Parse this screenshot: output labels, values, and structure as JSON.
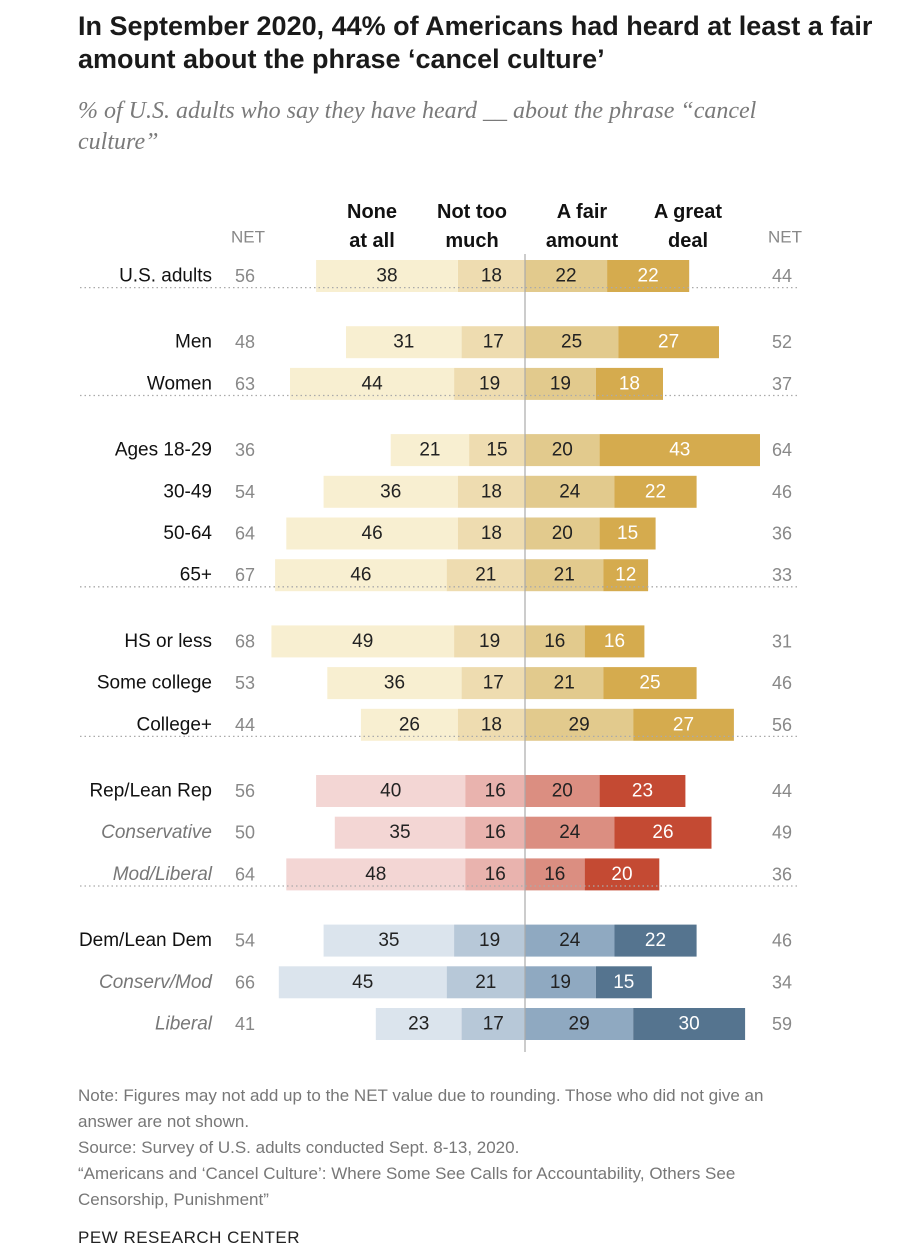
{
  "header": {
    "title": "In September 2020, 44% of Americans had heard at least a fair amount about the phrase ‘cancel culture’",
    "subtitle": "% of U.S. adults who say they have heard __ about the phrase “cancel culture”"
  },
  "footer": {
    "note": "Note: Figures may not add up to the NET value due to rounding. Those who did not give an answer are not shown.",
    "source": "Source: Survey of U.S. adults conducted Sept. 8-13, 2020.",
    "report": "“Americans and ‘Cancel Culture’: Where Some See Calls for Accountability, Others See Censorship, Punishment”",
    "brand": "PEW RESEARCH CENTER"
  },
  "chart_data": {
    "type": "bar",
    "subtype": "diverging-stacked-horizontal",
    "title": "In September 2020, 44% of Americans had heard at least a fair amount about the phrase ‘cancel culture’",
    "unit": "%",
    "net_label": "NET",
    "series": [
      {
        "name_line1": "None",
        "name_line2": "at all",
        "side": "left"
      },
      {
        "name_line1": "Not too",
        "name_line2": "much",
        "side": "left"
      },
      {
        "name_line1": "A fair",
        "name_line2": "amount",
        "side": "right"
      },
      {
        "name_line1": "A great",
        "name_line2": "deal",
        "side": "right"
      }
    ],
    "palettes": {
      "neutral": [
        "#f8efd1",
        "#eedcb0",
        "#e2ca8d",
        "#d5ab4e"
      ],
      "rep": [
        "#f3d6d4",
        "#e9b3ae",
        "#db8e81",
        "#c44a33"
      ],
      "dem": [
        "#dbe4ed",
        "#b7c8d8",
        "#8fa9c1",
        "#55748f"
      ]
    },
    "groups": [
      {
        "rows": [
          {
            "label": "U.S. adults",
            "italic": false,
            "palette": "neutral",
            "values": [
              38,
              18,
              22,
              22
            ],
            "net_left": 56,
            "net_right": 44
          }
        ]
      },
      {
        "rows": [
          {
            "label": "Men",
            "italic": false,
            "palette": "neutral",
            "values": [
              31,
              17,
              25,
              27
            ],
            "net_left": 48,
            "net_right": 52
          },
          {
            "label": "Women",
            "italic": false,
            "palette": "neutral",
            "values": [
              44,
              19,
              19,
              18
            ],
            "net_left": 63,
            "net_right": 37
          }
        ]
      },
      {
        "rows": [
          {
            "label": "Ages 18-29",
            "italic": false,
            "palette": "neutral",
            "values": [
              21,
              15,
              20,
              43
            ],
            "net_left": 36,
            "net_right": 64
          },
          {
            "label": "30-49",
            "italic": false,
            "palette": "neutral",
            "values": [
              36,
              18,
              24,
              22
            ],
            "net_left": 54,
            "net_right": 46
          },
          {
            "label": "50-64",
            "italic": false,
            "palette": "neutral",
            "values": [
              46,
              18,
              20,
              15
            ],
            "net_left": 64,
            "net_right": 36
          },
          {
            "label": "65+",
            "italic": false,
            "palette": "neutral",
            "values": [
              46,
              21,
              21,
              12
            ],
            "net_left": 67,
            "net_right": 33
          }
        ]
      },
      {
        "rows": [
          {
            "label": "HS or less",
            "italic": false,
            "palette": "neutral",
            "values": [
              49,
              19,
              16,
              16
            ],
            "net_left": 68,
            "net_right": 31
          },
          {
            "label": "Some college",
            "italic": false,
            "palette": "neutral",
            "values": [
              36,
              17,
              21,
              25
            ],
            "net_left": 53,
            "net_right": 46
          },
          {
            "label": "College+",
            "italic": false,
            "palette": "neutral",
            "values": [
              26,
              18,
              29,
              27
            ],
            "net_left": 44,
            "net_right": 56
          }
        ]
      },
      {
        "rows": [
          {
            "label": "Rep/Lean Rep",
            "italic": false,
            "palette": "rep",
            "values": [
              40,
              16,
              20,
              23
            ],
            "net_left": 56,
            "net_right": 44
          },
          {
            "label": "Conservative",
            "italic": true,
            "palette": "rep",
            "values": [
              35,
              16,
              24,
              26
            ],
            "net_left": 50,
            "net_right": 49
          },
          {
            "label": "Mod/Liberal",
            "italic": true,
            "palette": "rep",
            "values": [
              48,
              16,
              16,
              20
            ],
            "net_left": 64,
            "net_right": 36
          }
        ]
      },
      {
        "rows": [
          {
            "label": "Dem/Lean Dem",
            "italic": false,
            "palette": "dem",
            "values": [
              35,
              19,
              24,
              22
            ],
            "net_left": 54,
            "net_right": 46
          },
          {
            "label": "Conserv/Mod",
            "italic": true,
            "palette": "dem",
            "values": [
              45,
              21,
              19,
              15
            ],
            "net_left": 66,
            "net_right": 34
          },
          {
            "label": "Liberal",
            "italic": true,
            "palette": "dem",
            "values": [
              23,
              17,
              29,
              30
            ],
            "net_left": 41,
            "net_right": 59
          }
        ]
      }
    ]
  }
}
